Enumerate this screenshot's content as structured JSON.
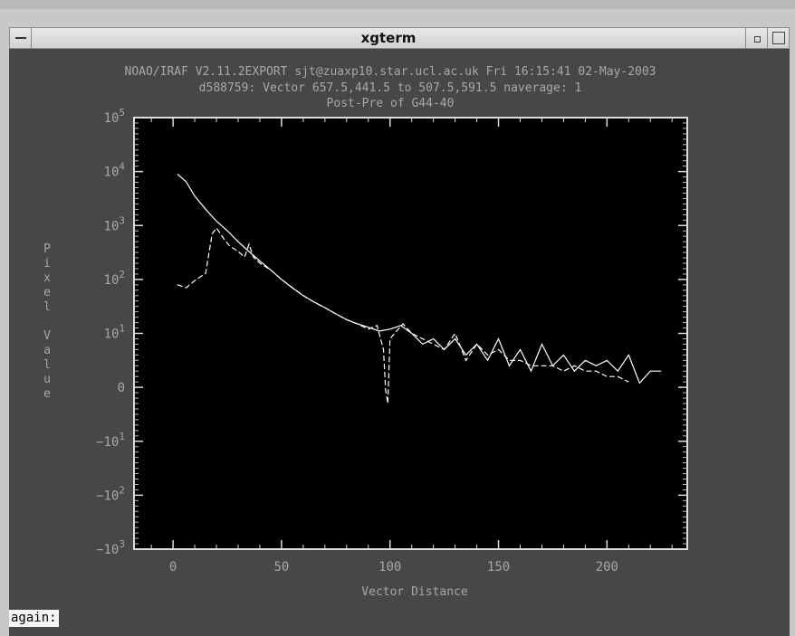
{
  "window": {
    "title": "xgterm"
  },
  "plot": {
    "header_line1": "NOAO/IRAF V2.11.2EXPORT sjt@zuaxp10.star.ucl.ac.uk Fri 16:15:41 02-May-2003",
    "header_line2": "d588759: Vector 657.5,441.5 to 507.5,591.5 naverage: 1",
    "header_line3": "Post-Pre of G44-40",
    "xlabel": "Vector Distance",
    "ylabel": "Pixel Value",
    "x_ticks": [
      "0",
      "50",
      "100",
      "150",
      "200"
    ],
    "y_ticks": [
      {
        "base": "10",
        "exp": "5"
      },
      {
        "base": "10",
        "exp": "4"
      },
      {
        "base": "10",
        "exp": "3"
      },
      {
        "base": "10",
        "exp": "2"
      },
      {
        "base": "10",
        "exp": "1"
      },
      {
        "base": "0",
        "exp": ""
      },
      {
        "base": "−10",
        "exp": "1"
      },
      {
        "base": "−10",
        "exp": "2"
      },
      {
        "base": "−10",
        "exp": "3"
      }
    ]
  },
  "chart_data": {
    "type": "line",
    "xlim": [
      -18,
      237
    ],
    "ylim_scale": "symmetric-log",
    "y_tick_values": [
      100000,
      10000,
      1000,
      100,
      10,
      0,
      -10,
      -100,
      -1000
    ],
    "series": [
      {
        "style": "solid",
        "x": [
          2,
          6,
          10,
          15,
          20,
          25,
          30,
          35,
          40,
          45,
          50,
          55,
          60,
          65,
          70,
          75,
          80,
          85,
          90,
          95,
          100,
          105,
          110,
          115,
          120,
          125,
          130,
          135,
          140,
          145,
          150,
          155,
          160,
          165,
          170,
          175,
          180,
          185,
          190,
          195,
          200,
          205,
          210,
          215,
          220,
          225
        ],
        "y": [
          9000,
          6500,
          3500,
          2000,
          1200,
          800,
          500,
          330,
          220,
          150,
          100,
          70,
          50,
          38,
          30,
          23,
          18,
          15,
          13,
          11,
          12,
          14,
          10,
          8,
          9,
          7,
          9,
          6,
          8,
          5,
          9,
          4,
          7,
          3,
          8,
          4,
          6,
          3,
          5,
          4,
          5,
          3,
          6,
          0.8,
          3,
          3
        ]
      },
      {
        "style": "dashed",
        "x": [
          2,
          6,
          10,
          15,
          18,
          20,
          23,
          26,
          30,
          33,
          35,
          37,
          40,
          45,
          50,
          55,
          60,
          65,
          70,
          75,
          80,
          85,
          90,
          94,
          97,
          98,
          99,
          100,
          103,
          106,
          110,
          115,
          120,
          125,
          130,
          135,
          140,
          145,
          150,
          155,
          160,
          165,
          170,
          175,
          180,
          185,
          190,
          195,
          200,
          205,
          210
        ],
        "y": [
          80,
          70,
          95,
          130,
          700,
          900,
          600,
          420,
          330,
          260,
          450,
          260,
          200,
          150,
          100,
          70,
          50,
          38,
          30,
          23,
          18,
          15,
          12,
          14,
          7,
          -0.5,
          -3,
          9,
          11,
          15,
          10,
          9,
          8,
          7,
          10,
          5,
          8,
          6,
          7,
          5,
          5,
          4,
          4,
          4,
          3,
          4,
          3,
          3,
          2,
          2,
          1
        ]
      }
    ]
  },
  "status": {
    "prompt": "again:"
  }
}
